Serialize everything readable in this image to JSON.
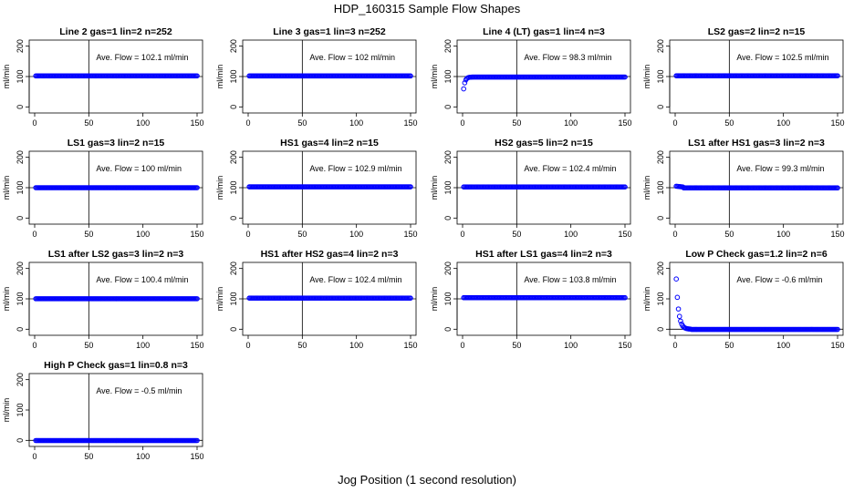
{
  "figure": {
    "title": "HDP_160315  Sample Flow Shapes",
    "xlabel": "Jog Position (1 second resolution)"
  },
  "style": {
    "point_color": "#0000ff",
    "line_color": "#000000"
  },
  "chart_data": [
    {
      "type": "scatter",
      "title": "Line 2 gas=1 lin=2 n=252",
      "ylabel": "ml/min",
      "annotation": "Ave. Flow =  102.1  ml/min",
      "xlim": [
        0,
        150
      ],
      "ylim": [
        -20,
        220
      ],
      "xticks": [
        0,
        50,
        100,
        150
      ],
      "yticks": [
        0,
        100,
        200
      ],
      "hline": 100,
      "vline": 50,
      "shape": "flat",
      "level": 102.1
    },
    {
      "type": "scatter",
      "title": "Line 3 gas=1 lin=3 n=252",
      "ylabel": "ml/min",
      "annotation": "Ave. Flow =  102  ml/min",
      "xlim": [
        0,
        150
      ],
      "ylim": [
        -20,
        220
      ],
      "xticks": [
        0,
        50,
        100,
        150
      ],
      "yticks": [
        0,
        100,
        200
      ],
      "hline": 100,
      "vline": 50,
      "shape": "flat",
      "level": 102
    },
    {
      "type": "scatter",
      "title": "Line 4 (LT) gas=1 lin=4 n=3",
      "ylabel": "ml/min",
      "annotation": "Ave. Flow =  98.3  ml/min",
      "xlim": [
        0,
        150
      ],
      "ylim": [
        -20,
        220
      ],
      "xticks": [
        0,
        50,
        100,
        150
      ],
      "yticks": [
        0,
        100,
        200
      ],
      "hline": 100,
      "vline": 50,
      "shape": "rise",
      "level": 98.3
    },
    {
      "type": "scatter",
      "title": "LS2 gas=2 lin=2 n=15",
      "ylabel": "ml/min",
      "annotation": "Ave. Flow =  102.5  ml/min",
      "xlim": [
        0,
        150
      ],
      "ylim": [
        -20,
        220
      ],
      "xticks": [
        0,
        50,
        100,
        150
      ],
      "yticks": [
        0,
        100,
        200
      ],
      "hline": 100,
      "vline": 50,
      "shape": "flat",
      "level": 102.5
    },
    {
      "type": "scatter",
      "title": "LS1 gas=3 lin=2 n=15",
      "ylabel": "ml/min",
      "annotation": "Ave. Flow =  100  ml/min",
      "xlim": [
        0,
        150
      ],
      "ylim": [
        -20,
        220
      ],
      "xticks": [
        0,
        50,
        100,
        150
      ],
      "yticks": [
        0,
        100,
        200
      ],
      "hline": 100,
      "vline": 50,
      "shape": "flat",
      "level": 100
    },
    {
      "type": "scatter",
      "title": "HS1 gas=4 lin=2 n=15",
      "ylabel": "ml/min",
      "annotation": "Ave. Flow =  102.9  ml/min",
      "xlim": [
        0,
        150
      ],
      "ylim": [
        -20,
        220
      ],
      "xticks": [
        0,
        50,
        100,
        150
      ],
      "yticks": [
        0,
        100,
        200
      ],
      "hline": 100,
      "vline": 50,
      "shape": "flat",
      "level": 102.9
    },
    {
      "type": "scatter",
      "title": "HS2 gas=5 lin=2 n=15",
      "ylabel": "ml/min",
      "annotation": "Ave. Flow =  102.4  ml/min",
      "xlim": [
        0,
        150
      ],
      "ylim": [
        -20,
        220
      ],
      "xticks": [
        0,
        50,
        100,
        150
      ],
      "yticks": [
        0,
        100,
        200
      ],
      "hline": 100,
      "vline": 50,
      "shape": "flat",
      "level": 102.4
    },
    {
      "type": "scatter",
      "title": "LS1 after HS1 gas=3 lin=2 n=3",
      "ylabel": "ml/min",
      "annotation": "Ave. Flow =  99.3  ml/min",
      "xlim": [
        0,
        150
      ],
      "ylim": [
        -20,
        220
      ],
      "xticks": [
        0,
        50,
        100,
        150
      ],
      "yticks": [
        0,
        100,
        200
      ],
      "hline": 100,
      "vline": 50,
      "shape": "dip",
      "level": 99.3
    },
    {
      "type": "scatter",
      "title": "LS1 after LS2 gas=3 lin=2 n=3",
      "ylabel": "ml/min",
      "annotation": "Ave. Flow =  100.4  ml/min",
      "xlim": [
        0,
        150
      ],
      "ylim": [
        -20,
        220
      ],
      "xticks": [
        0,
        50,
        100,
        150
      ],
      "yticks": [
        0,
        100,
        200
      ],
      "hline": 100,
      "vline": 50,
      "shape": "flat",
      "level": 100.4
    },
    {
      "type": "scatter",
      "title": "HS1 after HS2 gas=4 lin=2 n=3",
      "ylabel": "ml/min",
      "annotation": "Ave. Flow =  102.4  ml/min",
      "xlim": [
        0,
        150
      ],
      "ylim": [
        -20,
        220
      ],
      "xticks": [
        0,
        50,
        100,
        150
      ],
      "yticks": [
        0,
        100,
        200
      ],
      "hline": 100,
      "vline": 50,
      "shape": "flat",
      "level": 102.4
    },
    {
      "type": "scatter",
      "title": "HS1 after LS1 gas=4 lin=2 n=3",
      "ylabel": "ml/min",
      "annotation": "Ave. Flow =  103.8  ml/min",
      "xlim": [
        0,
        150
      ],
      "ylim": [
        -20,
        220
      ],
      "xticks": [
        0,
        50,
        100,
        150
      ],
      "yticks": [
        0,
        100,
        200
      ],
      "hline": 100,
      "vline": 50,
      "shape": "flat",
      "level": 103.8
    },
    {
      "type": "scatter",
      "title": "Low P Check gas=1.2 lin=2 n=6",
      "ylabel": "ml/min",
      "annotation": "Ave. Flow =  -0.6  ml/min",
      "xlim": [
        0,
        150
      ],
      "ylim": [
        -20,
        220
      ],
      "xticks": [
        0,
        50,
        100,
        150
      ],
      "yticks": [
        0,
        100,
        200
      ],
      "hline": 0,
      "vline": 50,
      "shape": "decay",
      "level": -0.6
    },
    {
      "type": "scatter",
      "title": "High P Check gas=1 lin=0.8 n=3",
      "ylabel": "ml/min",
      "annotation": "Ave. Flow =  -0.5  ml/min",
      "xlim": [
        0,
        150
      ],
      "ylim": [
        -20,
        220
      ],
      "xticks": [
        0,
        50,
        100,
        150
      ],
      "yticks": [
        0,
        100,
        200
      ],
      "hline": 0,
      "vline": 50,
      "shape": "flat",
      "level": -0.5
    }
  ]
}
